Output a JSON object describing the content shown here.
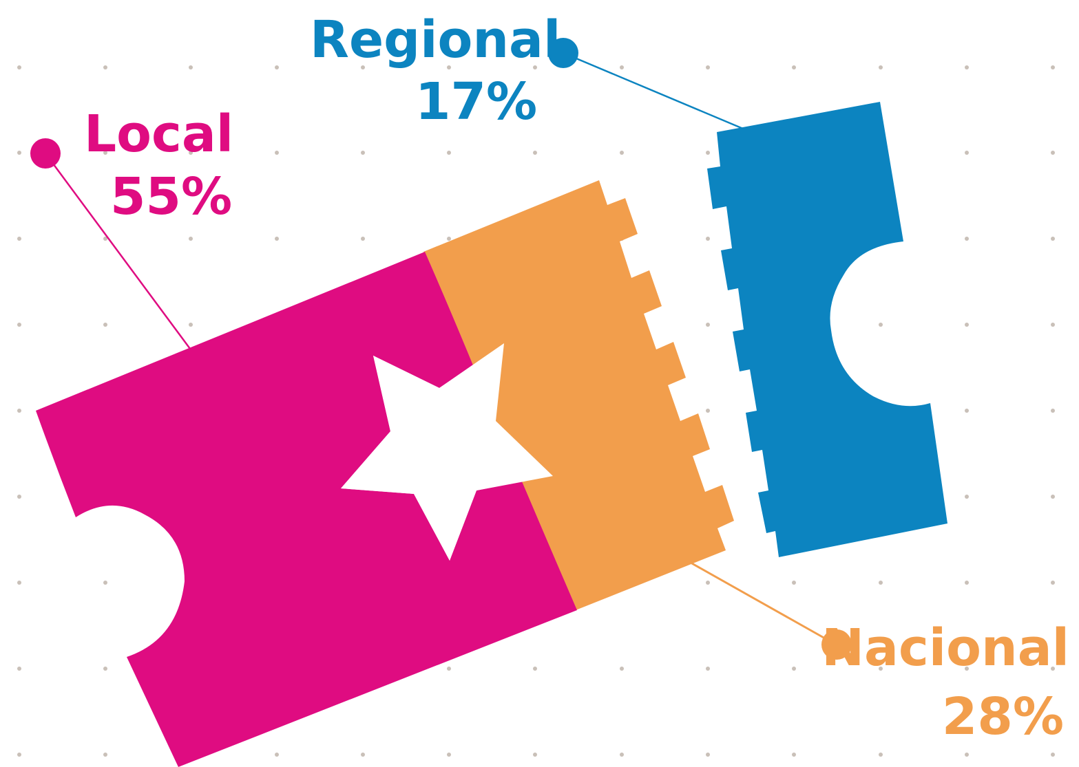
{
  "chart_data": {
    "type": "pie",
    "categories": [
      "Local",
      "Regional",
      "Nacional"
    ],
    "values": [
      55,
      17,
      28
    ],
    "unit": "%",
    "labels": [
      {
        "name": "Local",
        "value_text": "55%",
        "color": "#DF0C81"
      },
      {
        "name": "Regional",
        "value_text": "17%",
        "color": "#0C84C0"
      },
      {
        "name": "Nacional",
        "value_text": "28%",
        "color": "#F29E4C"
      }
    ],
    "legend": "callouts with dot markers",
    "grid": "dotted background"
  },
  "colors": {
    "local": "#DF0C81",
    "regional": "#0C84C0",
    "nacional": "#F29E4C",
    "grid_dot": "#C9C0B8"
  }
}
